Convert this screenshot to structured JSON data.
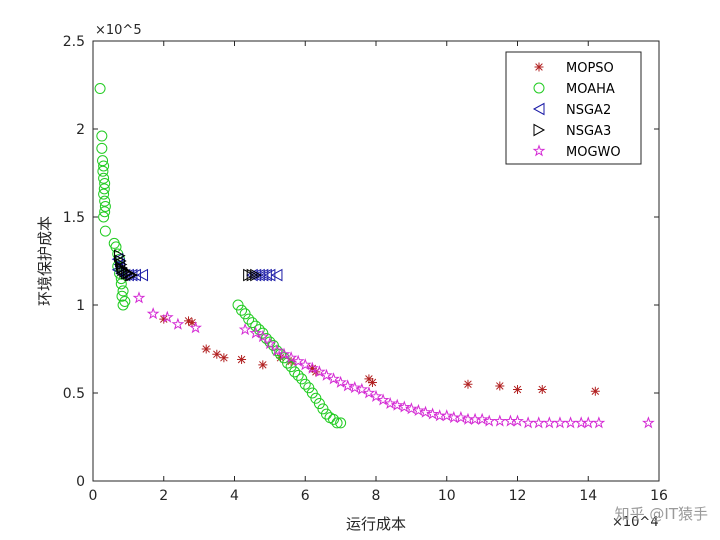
{
  "chart_data": {
    "type": "scatter",
    "title": "",
    "xlabel": "运行成本",
    "ylabel": "环境保护成本",
    "x_exponent": "×10^4",
    "y_exponent": "×10^5",
    "xlim": [
      0,
      16
    ],
    "ylim": [
      0,
      2.5
    ],
    "xticks": [
      0,
      2,
      4,
      6,
      8,
      10,
      12,
      14,
      16
    ],
    "yticks": [
      0,
      0.5,
      1,
      1.5,
      2,
      2.5
    ],
    "xtick_labels": [
      "0",
      "2",
      "4",
      "6",
      "8",
      "10",
      "12",
      "14",
      "16"
    ],
    "ytick_labels": [
      "0",
      "0.5",
      "1",
      "1.5",
      "2",
      "2.5"
    ],
    "grid": false,
    "legend_placement": "top-right",
    "series": [
      {
        "name": "MOPSO",
        "marker": "asterisk",
        "color": "#b22222",
        "points": [
          [
            2.0,
            0.92
          ],
          [
            2.7,
            0.91
          ],
          [
            2.8,
            0.9
          ],
          [
            3.2,
            0.75
          ],
          [
            3.5,
            0.72
          ],
          [
            3.7,
            0.7
          ],
          [
            4.2,
            0.69
          ],
          [
            4.8,
            0.66
          ],
          [
            5.3,
            0.7
          ],
          [
            5.6,
            0.68
          ],
          [
            6.2,
            0.64
          ],
          [
            6.3,
            0.62
          ],
          [
            7.8,
            0.58
          ],
          [
            7.9,
            0.56
          ],
          [
            10.6,
            0.55
          ],
          [
            11.5,
            0.54
          ],
          [
            12.0,
            0.52
          ],
          [
            12.7,
            0.52
          ],
          [
            14.2,
            0.51
          ]
        ]
      },
      {
        "name": "MOAHA",
        "marker": "circle",
        "color": "#22cc22",
        "points": [
          [
            0.2,
            2.23
          ],
          [
            0.25,
            1.96
          ],
          [
            0.25,
            1.89
          ],
          [
            0.27,
            1.82
          ],
          [
            0.3,
            1.79
          ],
          [
            0.28,
            1.76
          ],
          [
            0.3,
            1.72
          ],
          [
            0.33,
            1.69
          ],
          [
            0.32,
            1.66
          ],
          [
            0.3,
            1.63
          ],
          [
            0.33,
            1.59
          ],
          [
            0.35,
            1.56
          ],
          [
            0.33,
            1.53
          ],
          [
            0.3,
            1.5
          ],
          [
            0.35,
            1.42
          ],
          [
            0.6,
            1.35
          ],
          [
            0.65,
            1.33
          ],
          [
            0.7,
            1.29
          ],
          [
            0.75,
            1.26
          ],
          [
            0.7,
            1.22
          ],
          [
            0.75,
            1.18
          ],
          [
            0.8,
            1.15
          ],
          [
            0.8,
            1.12
          ],
          [
            0.85,
            1.08
          ],
          [
            0.82,
            1.05
          ],
          [
            0.9,
            1.02
          ],
          [
            0.85,
            1.0
          ],
          [
            4.1,
            1.0
          ],
          [
            4.2,
            0.97
          ],
          [
            4.3,
            0.95
          ],
          [
            4.4,
            0.92
          ],
          [
            4.5,
            0.9
          ],
          [
            4.6,
            0.88
          ],
          [
            4.7,
            0.86
          ],
          [
            4.8,
            0.84
          ],
          [
            4.9,
            0.81
          ],
          [
            5.0,
            0.79
          ],
          [
            5.1,
            0.77
          ],
          [
            5.2,
            0.74
          ],
          [
            5.3,
            0.72
          ],
          [
            5.4,
            0.7
          ],
          [
            5.5,
            0.67
          ],
          [
            5.6,
            0.65
          ],
          [
            5.7,
            0.62
          ],
          [
            5.8,
            0.6
          ],
          [
            5.9,
            0.58
          ],
          [
            6.0,
            0.55
          ],
          [
            6.1,
            0.53
          ],
          [
            6.2,
            0.5
          ],
          [
            6.3,
            0.47
          ],
          [
            6.4,
            0.44
          ],
          [
            6.5,
            0.41
          ],
          [
            6.6,
            0.38
          ],
          [
            6.7,
            0.36
          ],
          [
            6.8,
            0.35
          ],
          [
            6.9,
            0.33
          ],
          [
            7.0,
            0.33
          ]
        ]
      },
      {
        "name": "NSGA2",
        "marker": "triangle-left",
        "color": "#1a1aa6",
        "points": [
          [
            0.7,
            1.26
          ],
          [
            0.75,
            1.23
          ],
          [
            0.7,
            1.2
          ],
          [
            0.8,
            1.18
          ],
          [
            0.9,
            1.17
          ],
          [
            1.0,
            1.17
          ],
          [
            1.1,
            1.17
          ],
          [
            1.2,
            1.17
          ],
          [
            1.4,
            1.17
          ],
          [
            4.5,
            1.17
          ],
          [
            4.6,
            1.17
          ],
          [
            4.7,
            1.17
          ],
          [
            4.8,
            1.17
          ],
          [
            4.9,
            1.17
          ],
          [
            5.0,
            1.17
          ],
          [
            5.2,
            1.17
          ]
        ]
      },
      {
        "name": "NSGA3",
        "marker": "triangle-right",
        "color": "#000000",
        "points": [
          [
            0.75,
            1.28
          ],
          [
            0.78,
            1.25
          ],
          [
            0.8,
            1.23
          ],
          [
            0.82,
            1.21
          ],
          [
            0.85,
            1.2
          ],
          [
            0.9,
            1.19
          ],
          [
            0.95,
            1.18
          ],
          [
            1.0,
            1.18
          ],
          [
            1.05,
            1.17
          ],
          [
            1.1,
            1.17
          ],
          [
            4.4,
            1.17
          ],
          [
            4.5,
            1.17
          ],
          [
            4.6,
            1.17
          ]
        ]
      },
      {
        "name": "MOGWO",
        "marker": "pentagram",
        "color": "#d42ad4",
        "points": [
          [
            1.3,
            1.04
          ],
          [
            1.7,
            0.95
          ],
          [
            2.1,
            0.93
          ],
          [
            2.4,
            0.89
          ],
          [
            2.9,
            0.87
          ],
          [
            4.3,
            0.86
          ],
          [
            4.6,
            0.84
          ],
          [
            4.8,
            0.82
          ],
          [
            5.0,
            0.78
          ],
          [
            5.2,
            0.74
          ],
          [
            5.4,
            0.72
          ],
          [
            5.6,
            0.7
          ],
          [
            5.8,
            0.68
          ],
          [
            6.0,
            0.66
          ],
          [
            6.2,
            0.64
          ],
          [
            6.4,
            0.62
          ],
          [
            6.6,
            0.6
          ],
          [
            6.8,
            0.58
          ],
          [
            7.0,
            0.56
          ],
          [
            7.2,
            0.54
          ],
          [
            7.4,
            0.53
          ],
          [
            7.6,
            0.52
          ],
          [
            7.8,
            0.5
          ],
          [
            8.0,
            0.48
          ],
          [
            8.2,
            0.46
          ],
          [
            8.4,
            0.44
          ],
          [
            8.6,
            0.43
          ],
          [
            8.8,
            0.42
          ],
          [
            9.0,
            0.41
          ],
          [
            9.2,
            0.4
          ],
          [
            9.4,
            0.39
          ],
          [
            9.6,
            0.38
          ],
          [
            9.8,
            0.37
          ],
          [
            10.0,
            0.37
          ],
          [
            10.2,
            0.36
          ],
          [
            10.4,
            0.36
          ],
          [
            10.6,
            0.35
          ],
          [
            10.8,
            0.35
          ],
          [
            11.0,
            0.35
          ],
          [
            11.2,
            0.34
          ],
          [
            11.5,
            0.34
          ],
          [
            11.8,
            0.34
          ],
          [
            12.0,
            0.34
          ],
          [
            12.3,
            0.33
          ],
          [
            12.6,
            0.33
          ],
          [
            12.9,
            0.33
          ],
          [
            13.2,
            0.33
          ],
          [
            13.5,
            0.33
          ],
          [
            13.8,
            0.33
          ],
          [
            14.0,
            0.33
          ],
          [
            14.3,
            0.33
          ],
          [
            15.7,
            0.33
          ]
        ]
      }
    ]
  },
  "watermark": "知乎 @IT猿手"
}
